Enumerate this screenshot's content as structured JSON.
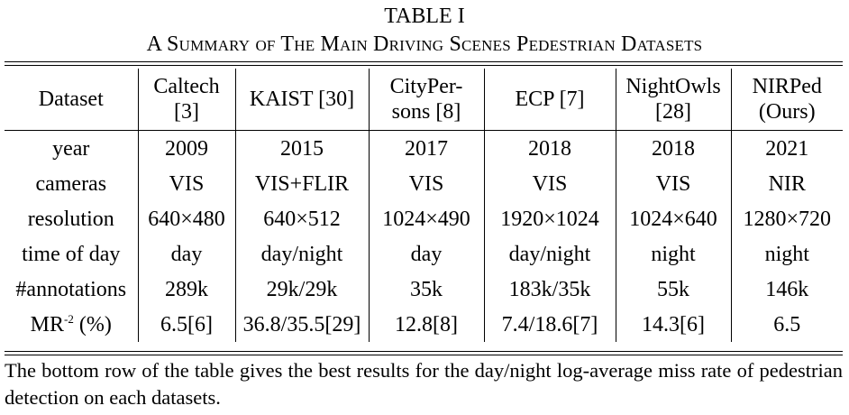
{
  "table_label": "TABLE I",
  "table_caption": "A Summary of The Main Driving Scenes Pedestrian Datasets",
  "columns": [
    {
      "line1": "Dataset",
      "line2": ""
    },
    {
      "line1": "Caltech",
      "line2": "[3]"
    },
    {
      "line1": "KAIST [30]",
      "line2": ""
    },
    {
      "line1": "CityPer-",
      "line2": "sons [8]"
    },
    {
      "line1": "ECP [7]",
      "line2": ""
    },
    {
      "line1": "NightOwls",
      "line2": "[28]"
    },
    {
      "line1": "NIRPed",
      "line2": "(Ours)"
    }
  ],
  "rows": [
    {
      "label": "year",
      "cells": [
        "2009",
        "2015",
        "2017",
        "2018",
        "2018",
        "2021"
      ]
    },
    {
      "label": "cameras",
      "cells": [
        "VIS",
        "VIS+FLIR",
        "VIS",
        "VIS",
        "VIS",
        "NIR"
      ]
    },
    {
      "label": "resolution",
      "cells": [
        "640×480",
        "640×512",
        "1024×490",
        "1920×1024",
        "1024×640",
        "1280×720"
      ]
    },
    {
      "label": "time of day",
      "cells": [
        "day",
        "day/night",
        "day",
        "day/night",
        "night",
        "night"
      ]
    },
    {
      "label": "#annotations",
      "cells": [
        "289k",
        "29k/29k",
        "35k",
        "183k/35k",
        "55k",
        "146k"
      ]
    },
    {
      "label_main": "MR",
      "label_sup": "-2",
      "label_rest": " (%)",
      "cells": [
        "6.5[6]",
        "36.8/35.5[29]",
        "12.8[8]",
        "7.4/18.6[7]",
        "14.3[6]",
        "6.5"
      ]
    }
  ],
  "note": "The bottom row of the table gives the best results for the day/night log-average miss rate of pedestrian detection on each datasets."
}
